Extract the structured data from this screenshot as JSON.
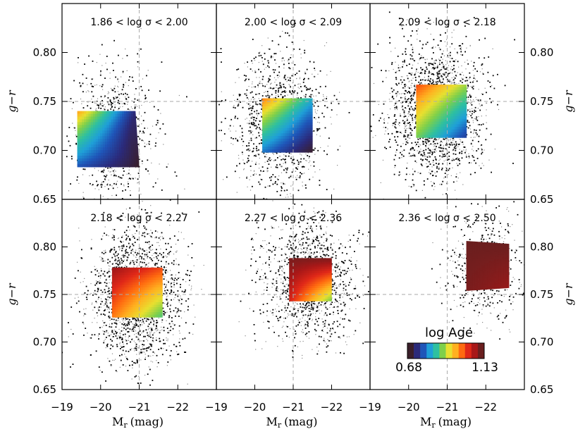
{
  "chart_data": {
    "type": "scatter",
    "layout": "2x3 panels",
    "xlabel": "M",
    "xlabel_sub": "r",
    "xlabel_unit": "(mag)",
    "ylabel": "g−r",
    "xlim": [
      -19,
      -23
    ],
    "ylim": [
      0.65,
      0.85
    ],
    "xticks": [
      "−19",
      "−20",
      "−21",
      "−22"
    ],
    "yticks": [
      "0.65",
      "0.70",
      "0.75",
      "0.80"
    ],
    "grid": "dashed crosshair at M_r = −21 and g−r = 0.75",
    "colorbar": {
      "label": "log Age",
      "min": "0.68",
      "max": "1.13",
      "colors": [
        "#3a1f2a",
        "#2b2a7a",
        "#1f55b8",
        "#1f9fd8",
        "#2ec0a0",
        "#7fd04a",
        "#e8e030",
        "#ffb020",
        "#ff6a10",
        "#e02818",
        "#a81818",
        "#6a1f1f"
      ]
    },
    "panels": [
      {
        "title": "1.86 < log σ < 2.00",
        "cloud_center": [
          -20.3,
          0.715
        ],
        "cloud_spread": [
          0.55,
          0.035
        ],
        "cloud_points": 900,
        "map": [
          [
            -19.4,
            0.74
          ],
          [
            -20.9,
            0.74
          ],
          [
            -21.0,
            0.683
          ],
          [
            -19.4,
            0.683
          ]
        ],
        "age_corners": [
          0.98,
          0.72,
          0.68,
          0.76
        ]
      },
      {
        "title": "2.00 < log σ < 2.09",
        "cloud_center": [
          -20.6,
          0.73
        ],
        "cloud_spread": [
          0.6,
          0.035
        ],
        "cloud_points": 1300,
        "map": [
          [
            -20.2,
            0.753
          ],
          [
            -21.5,
            0.753
          ],
          [
            -21.5,
            0.698
          ],
          [
            -20.2,
            0.698
          ]
        ],
        "age_corners": [
          1.0,
          0.82,
          0.68,
          0.78
        ]
      },
      {
        "title": "2.09 < log σ < 2.18",
        "cloud_center": [
          -20.7,
          0.74
        ],
        "cloud_spread": [
          0.6,
          0.035
        ],
        "cloud_points": 1900,
        "map": [
          [
            -20.2,
            0.767
          ],
          [
            -21.5,
            0.767
          ],
          [
            -21.5,
            0.713
          ],
          [
            -20.2,
            0.713
          ]
        ],
        "age_corners": [
          1.03,
          0.9,
          0.74,
          0.88
        ]
      },
      {
        "title": "2.18 < log σ < 2.27",
        "cloud_center": [
          -20.9,
          0.75
        ],
        "cloud_spread": [
          0.6,
          0.035
        ],
        "cloud_points": 1900,
        "map": [
          [
            -20.3,
            0.778
          ],
          [
            -21.6,
            0.778
          ],
          [
            -21.6,
            0.726
          ],
          [
            -20.3,
            0.726
          ]
        ],
        "age_corners": [
          1.1,
          1.03,
          0.86,
          1.0
        ]
      },
      {
        "title": "2.27 < log σ < 2.36",
        "cloud_center": [
          -21.4,
          0.765
        ],
        "cloud_spread": [
          0.6,
          0.032
        ],
        "cloud_points": 1300,
        "map": [
          [
            -20.9,
            0.788
          ],
          [
            -22.0,
            0.788
          ],
          [
            -22.0,
            0.743
          ],
          [
            -20.9,
            0.743
          ]
        ],
        "age_corners": [
          1.12,
          1.12,
          0.88,
          1.06
        ]
      },
      {
        "title": "2.36 < log σ < 2.50",
        "cloud_center": [
          -22.0,
          0.78
        ],
        "cloud_spread": [
          0.5,
          0.028
        ],
        "cloud_points": 550,
        "map": [
          [
            -21.5,
            0.806
          ],
          [
            -22.6,
            0.803
          ],
          [
            -22.6,
            0.757
          ],
          [
            -21.5,
            0.754
          ]
        ],
        "age_corners": [
          1.13,
          1.13,
          1.1,
          1.12
        ]
      }
    ]
  }
}
